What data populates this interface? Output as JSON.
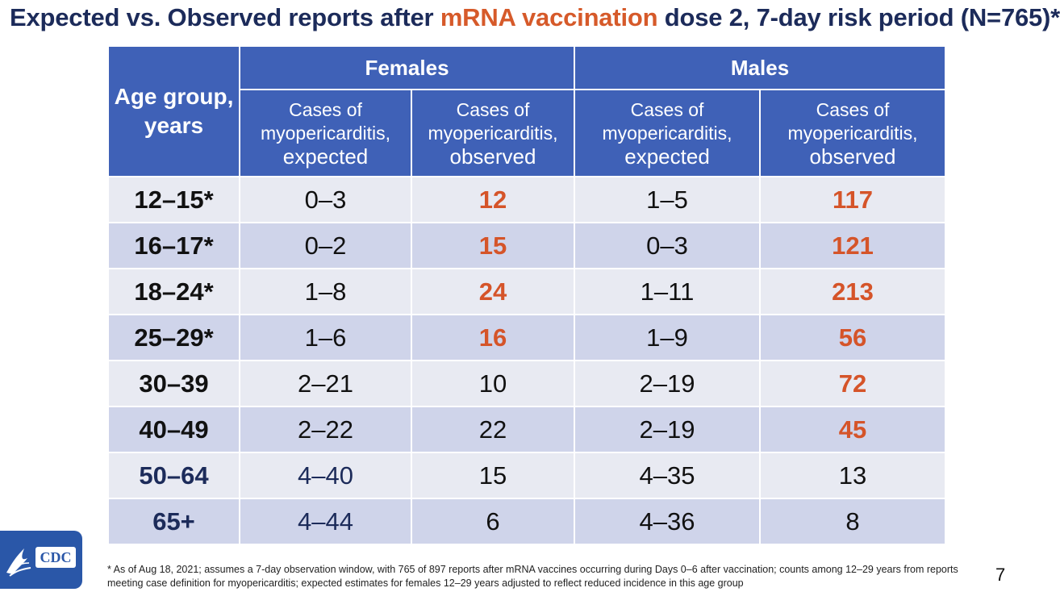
{
  "title": {
    "prefix": "Expected vs. Observed reports after ",
    "accent": "mRNA vaccination",
    "suffix": " dose 2, 7-day risk period (N=765)*"
  },
  "colors": {
    "accent": "#d55429",
    "header": "#3f61b7",
    "navy": "#1c2b5a"
  },
  "table": {
    "age_header_line1": "Age group,",
    "age_header_line2": "years",
    "females_label": "Females",
    "males_label": "Males",
    "sub_expected": [
      "Cases of",
      "myopericarditis,",
      "expected"
    ],
    "sub_observed": [
      "Cases of",
      "myopericarditis,",
      "observed"
    ],
    "rows": [
      {
        "age": "12–15*",
        "f_exp": "0–3",
        "f_obs": "12",
        "m_exp": "1–5",
        "m_obs": "117"
      },
      {
        "age": "16–17*",
        "f_exp": "0–2",
        "f_obs": "15",
        "m_exp": "0–3",
        "m_obs": "121"
      },
      {
        "age": "18–24*",
        "f_exp": "1–8",
        "f_obs": "24",
        "m_exp": "1–11",
        "m_obs": "213"
      },
      {
        "age": "25–29*",
        "f_exp": "1–6",
        "f_obs": "16",
        "m_exp": "1–9",
        "m_obs": "56"
      },
      {
        "age": "30–39",
        "f_exp": "2–21",
        "f_obs": "10",
        "m_exp": "2–19",
        "m_obs": "72"
      },
      {
        "age": "40–49",
        "f_exp": "2–22",
        "f_obs": "22",
        "m_exp": "2–19",
        "m_obs": "45"
      },
      {
        "age": "50–64",
        "f_exp": "4–40",
        "f_obs": "15",
        "m_exp": "4–35",
        "m_obs": "13"
      },
      {
        "age": "65+",
        "f_exp": "4–44",
        "f_obs": "6",
        "m_exp": "4–36",
        "m_obs": "8"
      }
    ]
  },
  "logo": {
    "text": "CDC",
    "icon": "hhs-eagle-icon"
  },
  "footnote": "* As of Aug 18, 2021; assumes a 7-day observation window, with 765 of 897 reports after mRNA vaccines occurring during Days 0–6 after vaccination; counts among 12–29 years from reports meeting case definition for myopericarditis; expected estimates for females 12–29 years adjusted to reflect reduced incidence in this age group",
  "page_number": "7"
}
